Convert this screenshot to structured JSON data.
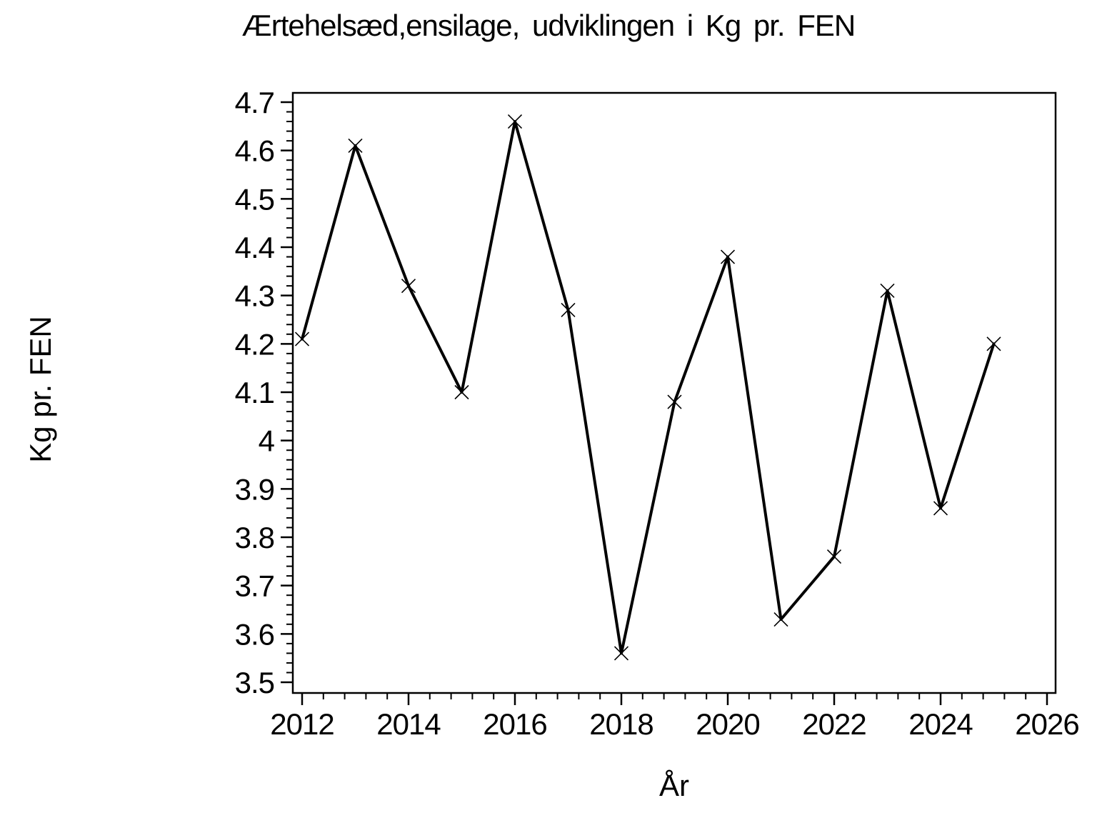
{
  "chart_data": {
    "type": "line",
    "title": "Ærtehelsæd,ensilage, udviklingen i Kg pr. FEN",
    "xlabel": "År",
    "ylabel": "Kg pr. FEN",
    "x": [
      2012,
      2013,
      2014,
      2015,
      2016,
      2017,
      2018,
      2019,
      2020,
      2021,
      2022,
      2023,
      2024,
      2025
    ],
    "values": [
      4.21,
      4.61,
      4.32,
      4.1,
      4.66,
      4.27,
      3.56,
      4.08,
      4.38,
      3.63,
      3.76,
      4.31,
      3.86,
      4.2
    ],
    "series_name": "Kg pr. FEN",
    "xlim": [
      2012,
      2026
    ],
    "ylim": [
      3.5,
      4.7
    ],
    "x_ticks": [
      2012,
      2014,
      2016,
      2018,
      2020,
      2022,
      2024,
      2026
    ],
    "y_tick_labels": [
      "4.7",
      "4.6",
      "4.5",
      "4.4",
      "4.3",
      "4.2",
      "4.1",
      "4",
      "3.9",
      "3.8",
      "3.7",
      "3.6",
      "3.5"
    ],
    "x_minor_per_interval": 4,
    "y_minor_per_interval": 4,
    "marker": "x",
    "line_color": "#000000",
    "axis_color": "#000000",
    "background": "#ffffff",
    "grid": false,
    "legend": false
  }
}
